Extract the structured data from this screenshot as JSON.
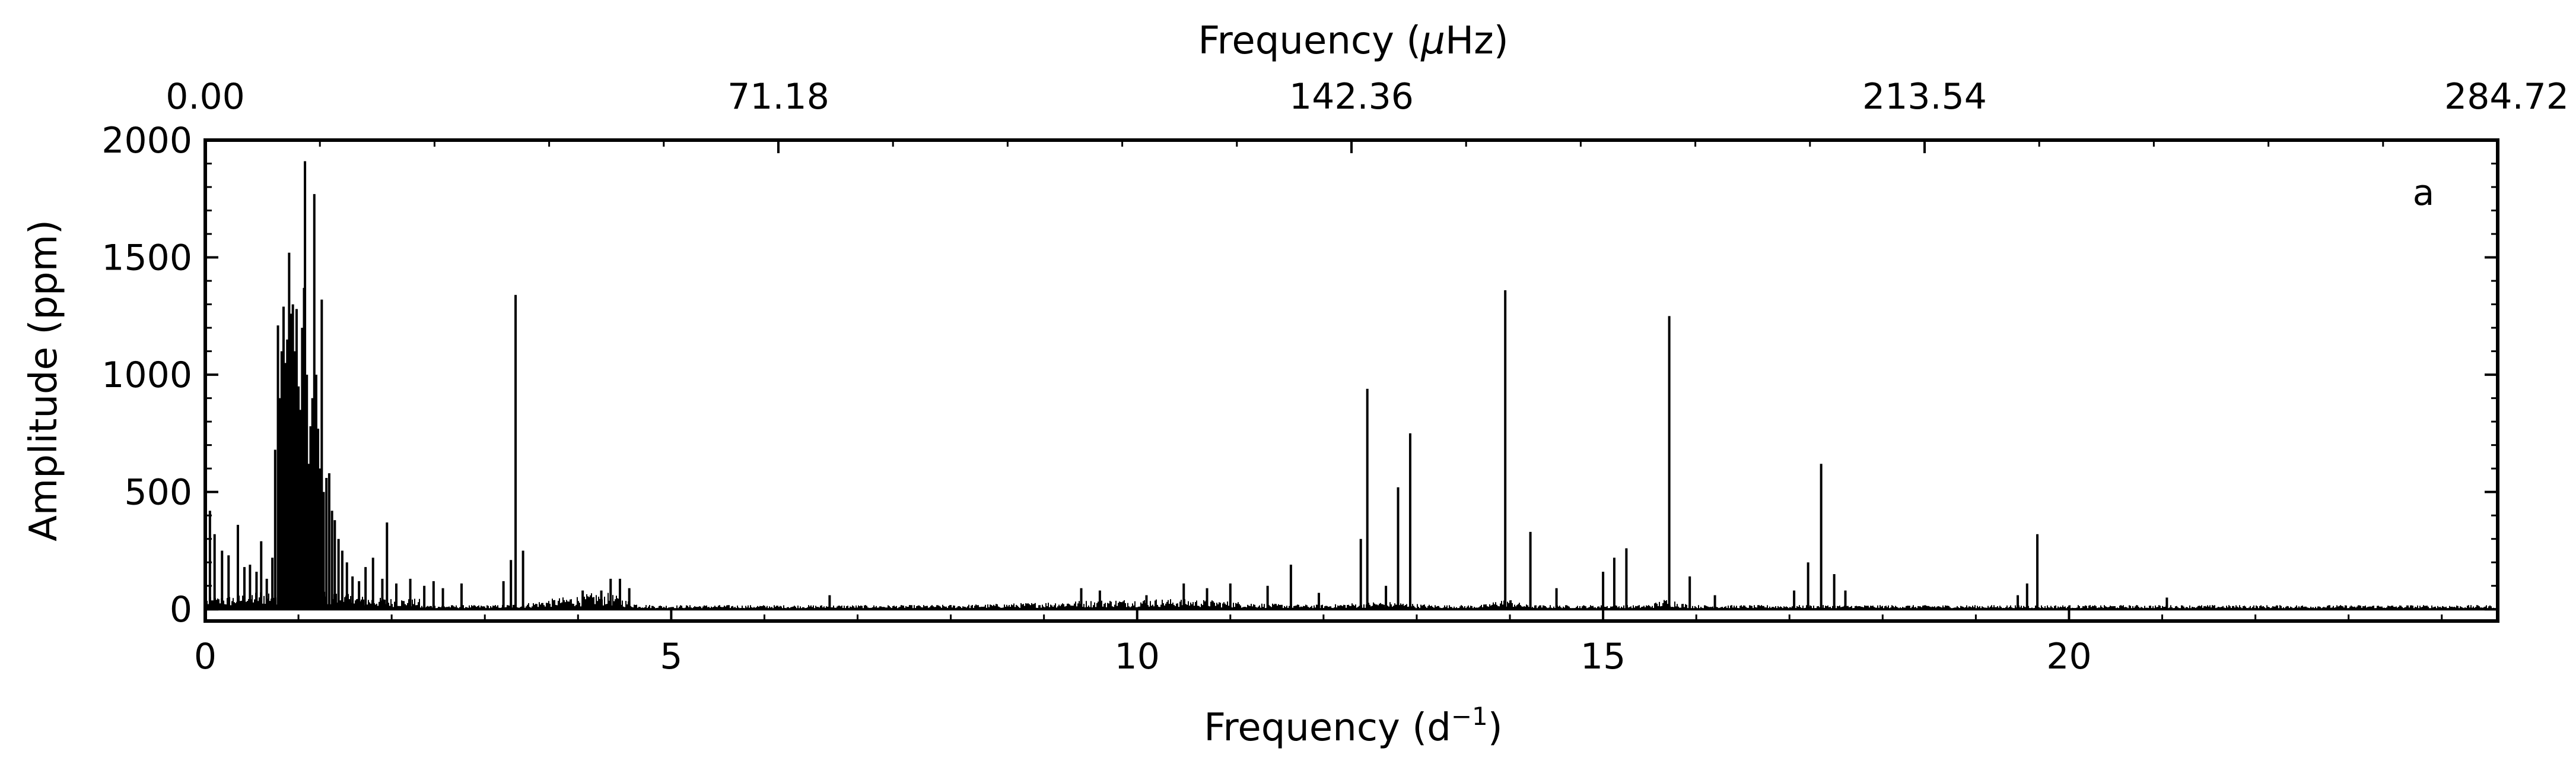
{
  "chart_data": {
    "type": "line",
    "panel_label": "a",
    "xlabel": {
      "text": "Frequency (d",
      "sup": "−1",
      "suffix": ")"
    },
    "top_xlabel": {
      "text": "Frequency (",
      "unit_mu": "μ",
      "unit_rest": "Hz)"
    },
    "ylabel": "Amplitude (ppm)",
    "xlim": [
      0,
      24.6
    ],
    "ylim": [
      -50,
      2000
    ],
    "grid": false,
    "x_ticks": [
      0,
      5,
      10,
      15,
      20
    ],
    "x_tick_labels": [
      "0",
      "5",
      "10",
      "15",
      "20"
    ],
    "y_ticks": [
      0,
      500,
      1000,
      1500,
      2000
    ],
    "y_tick_labels": [
      "0",
      "500",
      "1000",
      "1500",
      "2000"
    ],
    "top_ticks_d": [
      0,
      6.15,
      12.3,
      18.45,
      24.6
    ],
    "top_tick_labels": [
      "0.00",
      "71.18",
      "142.36",
      "213.54",
      "284.72"
    ],
    "peaks": [
      {
        "x": 0.05,
        "y": 420
      },
      {
        "x": 0.1,
        "y": 320
      },
      {
        "x": 0.18,
        "y": 250
      },
      {
        "x": 0.25,
        "y": 230
      },
      {
        "x": 0.35,
        "y": 360
      },
      {
        "x": 0.42,
        "y": 180
      },
      {
        "x": 0.48,
        "y": 190
      },
      {
        "x": 0.55,
        "y": 160
      },
      {
        "x": 0.6,
        "y": 290
      },
      {
        "x": 0.66,
        "y": 130
      },
      {
        "x": 0.72,
        "y": 220
      },
      {
        "x": 0.75,
        "y": 680
      },
      {
        "x": 0.78,
        "y": 1210
      },
      {
        "x": 0.8,
        "y": 900
      },
      {
        "x": 0.82,
        "y": 1100
      },
      {
        "x": 0.84,
        "y": 1290
      },
      {
        "x": 0.86,
        "y": 1050
      },
      {
        "x": 0.88,
        "y": 1150
      },
      {
        "x": 0.9,
        "y": 1520
      },
      {
        "x": 0.92,
        "y": 1260
      },
      {
        "x": 0.94,
        "y": 1300
      },
      {
        "x": 0.96,
        "y": 1100
      },
      {
        "x": 0.98,
        "y": 1280
      },
      {
        "x": 1.0,
        "y": 950
      },
      {
        "x": 1.02,
        "y": 850
      },
      {
        "x": 1.04,
        "y": 1200
      },
      {
        "x": 1.06,
        "y": 1370
      },
      {
        "x": 1.07,
        "y": 1910
      },
      {
        "x": 1.09,
        "y": 1000
      },
      {
        "x": 1.11,
        "y": 620
      },
      {
        "x": 1.13,
        "y": 780
      },
      {
        "x": 1.15,
        "y": 900
      },
      {
        "x": 1.17,
        "y": 1770
      },
      {
        "x": 1.19,
        "y": 1000
      },
      {
        "x": 1.21,
        "y": 770
      },
      {
        "x": 1.23,
        "y": 600
      },
      {
        "x": 1.25,
        "y": 1320
      },
      {
        "x": 1.27,
        "y": 500
      },
      {
        "x": 1.3,
        "y": 560
      },
      {
        "x": 1.33,
        "y": 580
      },
      {
        "x": 1.36,
        "y": 420
      },
      {
        "x": 1.39,
        "y": 380
      },
      {
        "x": 1.43,
        "y": 300
      },
      {
        "x": 1.47,
        "y": 250
      },
      {
        "x": 1.52,
        "y": 200
      },
      {
        "x": 1.58,
        "y": 140
      },
      {
        "x": 1.65,
        "y": 120
      },
      {
        "x": 1.72,
        "y": 180
      },
      {
        "x": 1.8,
        "y": 220
      },
      {
        "x": 1.9,
        "y": 130
      },
      {
        "x": 1.95,
        "y": 370
      },
      {
        "x": 2.05,
        "y": 110
      },
      {
        "x": 2.2,
        "y": 130
      },
      {
        "x": 2.35,
        "y": 100
      },
      {
        "x": 2.45,
        "y": 120
      },
      {
        "x": 2.55,
        "y": 90
      },
      {
        "x": 2.75,
        "y": 110
      },
      {
        "x": 3.2,
        "y": 120
      },
      {
        "x": 3.28,
        "y": 210
      },
      {
        "x": 3.33,
        "y": 1340
      },
      {
        "x": 3.41,
        "y": 250
      },
      {
        "x": 4.05,
        "y": 80
      },
      {
        "x": 4.25,
        "y": 80
      },
      {
        "x": 4.35,
        "y": 130
      },
      {
        "x": 4.45,
        "y": 130
      },
      {
        "x": 4.55,
        "y": 90
      },
      {
        "x": 6.7,
        "y": 60
      },
      {
        "x": 9.4,
        "y": 90
      },
      {
        "x": 9.6,
        "y": 80
      },
      {
        "x": 10.1,
        "y": 60
      },
      {
        "x": 10.5,
        "y": 110
      },
      {
        "x": 10.75,
        "y": 90
      },
      {
        "x": 11.0,
        "y": 110
      },
      {
        "x": 11.4,
        "y": 100
      },
      {
        "x": 11.65,
        "y": 190
      },
      {
        "x": 11.95,
        "y": 70
      },
      {
        "x": 12.4,
        "y": 300
      },
      {
        "x": 12.47,
        "y": 940
      },
      {
        "x": 12.67,
        "y": 100
      },
      {
        "x": 12.8,
        "y": 520
      },
      {
        "x": 12.93,
        "y": 750
      },
      {
        "x": 13.95,
        "y": 1360
      },
      {
        "x": 14.22,
        "y": 330
      },
      {
        "x": 14.5,
        "y": 90
      },
      {
        "x": 15.0,
        "y": 160
      },
      {
        "x": 15.12,
        "y": 220
      },
      {
        "x": 15.25,
        "y": 260
      },
      {
        "x": 15.71,
        "y": 1250
      },
      {
        "x": 15.93,
        "y": 140
      },
      {
        "x": 16.2,
        "y": 60
      },
      {
        "x": 17.05,
        "y": 80
      },
      {
        "x": 17.2,
        "y": 200
      },
      {
        "x": 17.34,
        "y": 620
      },
      {
        "x": 17.48,
        "y": 150
      },
      {
        "x": 17.6,
        "y": 80
      },
      {
        "x": 19.45,
        "y": 60
      },
      {
        "x": 19.55,
        "y": 110
      },
      {
        "x": 19.66,
        "y": 320
      },
      {
        "x": 21.05,
        "y": 50
      }
    ],
    "series_color": "#000000",
    "axes_color": "#000000",
    "background": "#ffffff"
  }
}
